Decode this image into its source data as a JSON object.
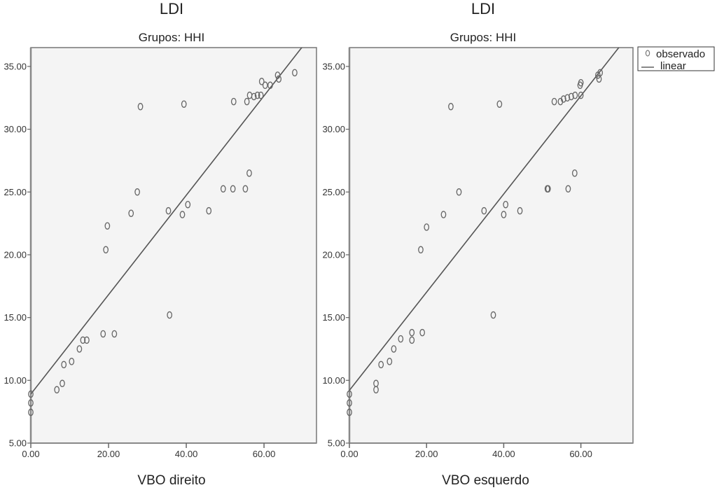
{
  "chart_data": [
    {
      "type": "scatter",
      "title": "LDI",
      "subtitle": "Grupos: HHI",
      "xlabel": "VBO direito",
      "ylabel": "",
      "xlim": [
        0,
        73.5
      ],
      "ylim": [
        5,
        36.5
      ],
      "xticks": [
        "0.00",
        "20.00",
        "40.00",
        "60.00"
      ],
      "xtick_values": [
        0,
        20,
        40,
        60
      ],
      "yticks": [
        "5.00",
        "10.00",
        "15.00",
        "20.00",
        "25.00",
        "30.00",
        "35.00"
      ],
      "ytick_values": [
        5,
        10,
        15,
        20,
        25,
        30,
        35
      ],
      "grid": false,
      "series": [
        {
          "name": "observado",
          "kind": "points",
          "x": [
            0,
            0,
            0,
            6.7,
            8.1,
            8.5,
            10.5,
            12.5,
            13.4,
            14.4,
            18.6,
            21.5,
            19.3,
            19.7,
            25.8,
            27.4,
            35.4,
            39.0,
            40.4,
            35.7,
            45.8,
            49.5,
            52.0,
            55.2,
            56.2,
            28.2,
            39.4,
            52.2,
            55.6,
            56.3,
            57.4,
            58.3,
            59.2,
            59.4,
            60.3,
            61.6,
            63.5,
            63.8,
            67.9
          ],
          "y": [
            7.45,
            8.2,
            8.9,
            9.25,
            9.75,
            11.25,
            11.5,
            12.5,
            13.2,
            13.2,
            13.7,
            13.7,
            20.4,
            22.3,
            23.3,
            25.0,
            23.5,
            23.2,
            24.0,
            15.2,
            23.5,
            25.25,
            25.25,
            25.25,
            26.5,
            31.8,
            32.0,
            32.2,
            32.2,
            32.7,
            32.6,
            32.7,
            32.7,
            33.8,
            33.5,
            33.5,
            34.3,
            34.0,
            34.5
          ]
        },
        {
          "name": "linear",
          "kind": "line",
          "intercept": 8.9,
          "slope": 0.396
        }
      ]
    },
    {
      "type": "scatter",
      "title": "LDI",
      "subtitle": "Grupos: HHI",
      "xlabel": "VBO esquerdo",
      "ylabel": "",
      "xlim": [
        0,
        73.5
      ],
      "ylim": [
        5,
        36.5
      ],
      "xticks": [
        "0.00",
        "20.00",
        "40.00",
        "60.00"
      ],
      "xtick_values": [
        0,
        20,
        40,
        60
      ],
      "yticks": [
        "5.00",
        "10.00",
        "15.00",
        "20.00",
        "25.00",
        "30.00",
        "35.00"
      ],
      "ytick_values": [
        5,
        10,
        15,
        20,
        25,
        30,
        35
      ],
      "grid": false,
      "series": [
        {
          "name": "observado",
          "kind": "points",
          "x": [
            0,
            0,
            0,
            6.9,
            6.9,
            8.2,
            10.4,
            11.5,
            13.3,
            16.2,
            16.2,
            18.9,
            18.5,
            20.0,
            24.4,
            28.4,
            34.9,
            40.0,
            40.5,
            44.2,
            37.3,
            51.3,
            51.5,
            56.7,
            58.4,
            26.3,
            38.9,
            53.1,
            54.7,
            55.5,
            56.5,
            57.5,
            58.5,
            60.0,
            59.8,
            60.0,
            64.4,
            64.7,
            65.0
          ],
          "y": [
            7.45,
            8.2,
            8.9,
            9.75,
            9.25,
            11.25,
            11.5,
            12.5,
            13.3,
            13.8,
            13.2,
            13.8,
            20.4,
            22.2,
            23.2,
            25.0,
            23.5,
            23.2,
            24.0,
            23.5,
            15.2,
            25.25,
            25.25,
            25.25,
            26.5,
            31.8,
            32.0,
            32.2,
            32.2,
            32.4,
            32.5,
            32.6,
            32.7,
            32.7,
            33.5,
            33.7,
            34.3,
            34.0,
            34.5
          ]
        },
        {
          "name": "linear",
          "kind": "line",
          "intercept": 9.2,
          "slope": 0.391
        }
      ]
    }
  ],
  "legend": {
    "position": "top-right",
    "items": [
      {
        "label": "observado",
        "symbol": "circle-marker"
      },
      {
        "label": "linear",
        "symbol": "line-marker"
      }
    ]
  },
  "colors": {
    "plot_background": "#f4f4f4",
    "marker": "#666666",
    "line": "#555555",
    "axis": "#777777"
  }
}
